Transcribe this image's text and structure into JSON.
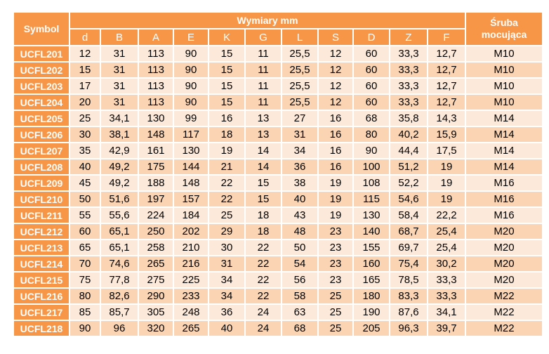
{
  "headers": {
    "symbol": "Symbol",
    "dims_group": "Wymiary mm",
    "bolt_line1": "Śruba",
    "bolt_line2": "mocująca",
    "columns": [
      "d",
      "B",
      "A",
      "E",
      "K",
      "G",
      "L",
      "S",
      "D",
      "Z",
      "F"
    ]
  },
  "colors": {
    "header": "#f79646",
    "row_light": "#fde9d9",
    "row_dark": "#fbd4b4",
    "header_text": "#ffffff"
  },
  "rows": [
    {
      "symbol": "UCFL201",
      "values": [
        "12",
        "31",
        "113",
        "90",
        "15",
        "11",
        "25,5",
        "12",
        "60",
        "33,3",
        "12,7"
      ],
      "bolt": "M10"
    },
    {
      "symbol": "UCFL202",
      "values": [
        "15",
        "31",
        "113",
        "90",
        "15",
        "11",
        "25,5",
        "12",
        "60",
        "33,3",
        "12,7"
      ],
      "bolt": "M10"
    },
    {
      "symbol": "UCFL203",
      "values": [
        "17",
        "31",
        "113",
        "90",
        "15",
        "11",
        "25,5",
        "12",
        "60",
        "33,3",
        "12,7"
      ],
      "bolt": "M10"
    },
    {
      "symbol": "UCFL204",
      "values": [
        "20",
        "31",
        "113",
        "90",
        "15",
        "11",
        "25,5",
        "12",
        "60",
        "33,3",
        "12,7"
      ],
      "bolt": "M10"
    },
    {
      "symbol": "UCFL205",
      "values": [
        "25",
        "34,1",
        "130",
        "99",
        "16",
        "13",
        "27",
        "16",
        "68",
        "35,8",
        "14,3"
      ],
      "bolt": "M14"
    },
    {
      "symbol": "UCFL206",
      "values": [
        "30",
        "38,1",
        "148",
        "117",
        "18",
        "13",
        "31",
        "16",
        "80",
        "40,2",
        "15,9"
      ],
      "bolt": "M14"
    },
    {
      "symbol": "UCFL207",
      "values": [
        "35",
        "42,9",
        "161",
        "130",
        "19",
        "14",
        "34",
        "16",
        "90",
        "44,4",
        "17,5"
      ],
      "bolt": "M14"
    },
    {
      "symbol": "UCFL208",
      "values": [
        "40",
        "49,2",
        "175",
        "144",
        "21",
        "14",
        "36",
        "16",
        "100",
        "51,2",
        "19"
      ],
      "bolt": "M14"
    },
    {
      "symbol": "UCFL209",
      "values": [
        "45",
        "49,2",
        "188",
        "148",
        "22",
        "15",
        "38",
        "19",
        "108",
        "52,2",
        "19"
      ],
      "bolt": "M16"
    },
    {
      "symbol": "UCFL210",
      "values": [
        "50",
        "51,6",
        "197",
        "157",
        "22",
        "15",
        "40",
        "19",
        "115",
        "54,6",
        "19"
      ],
      "bolt": "M16"
    },
    {
      "symbol": "UCFL211",
      "values": [
        "55",
        "55,6",
        "224",
        "184",
        "25",
        "18",
        "43",
        "19",
        "130",
        "58,4",
        "22,2"
      ],
      "bolt": "M16"
    },
    {
      "symbol": "UCFL212",
      "values": [
        "60",
        "65,1",
        "250",
        "202",
        "29",
        "18",
        "48",
        "23",
        "140",
        "68,7",
        "25,4"
      ],
      "bolt": "M20"
    },
    {
      "symbol": "UCFL213",
      "values": [
        "65",
        "65,1",
        "258",
        "210",
        "30",
        "22",
        "50",
        "23",
        "155",
        "69,7",
        "25,4"
      ],
      "bolt": "M20"
    },
    {
      "symbol": "UCFL214",
      "values": [
        "70",
        "74,6",
        "265",
        "216",
        "31",
        "22",
        "54",
        "23",
        "160",
        "75,4",
        "30,2"
      ],
      "bolt": "M20"
    },
    {
      "symbol": "UCFL215",
      "values": [
        "75",
        "77,8",
        "275",
        "225",
        "34",
        "22",
        "56",
        "23",
        "165",
        "78,5",
        "33,3"
      ],
      "bolt": "M20"
    },
    {
      "symbol": "UCFL216",
      "values": [
        "80",
        "82,6",
        "290",
        "233",
        "34",
        "22",
        "58",
        "25",
        "180",
        "83,3",
        "33,3"
      ],
      "bolt": "M22"
    },
    {
      "symbol": "UCFL217",
      "values": [
        "85",
        "85,7",
        "305",
        "248",
        "36",
        "24",
        "63",
        "25",
        "190",
        "87,6",
        "34,1"
      ],
      "bolt": "M22"
    },
    {
      "symbol": "UCFL218",
      "values": [
        "90",
        "96",
        "320",
        "265",
        "40",
        "24",
        "68",
        "25",
        "205",
        "96,3",
        "39,7"
      ],
      "bolt": "M22"
    }
  ]
}
